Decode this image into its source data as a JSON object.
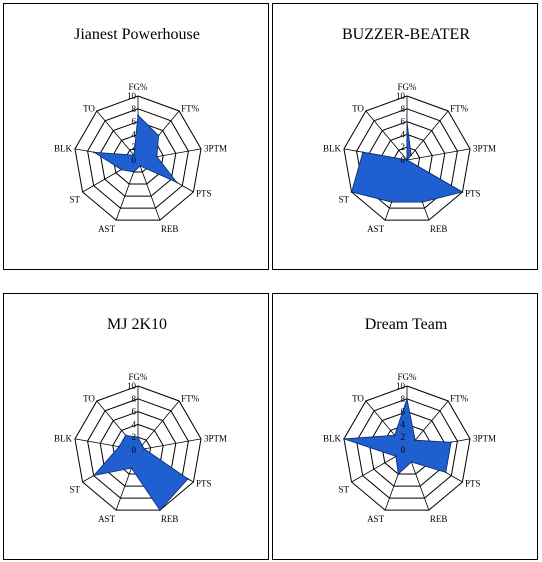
{
  "chart_data": [
    {
      "type": "radar",
      "title": "Jianest Powerhouse",
      "axes": [
        "FG%",
        "FT%",
        "3PTM",
        "PTS",
        "REB",
        "AST",
        "ST",
        "BLK",
        "TO"
      ],
      "range": [
        0,
        10
      ],
      "ticks": [
        "0",
        "2",
        "4",
        "6",
        "8",
        "10"
      ],
      "values": [
        7,
        5,
        3,
        7,
        1,
        2,
        3,
        7,
        1
      ]
    },
    {
      "type": "radar",
      "title": "BUZZER-BEATER",
      "axes": [
        "FG%",
        "FT%",
        "3PTM",
        "PTS",
        "REB",
        "AST",
        "ST",
        "BLK",
        "TO"
      ],
      "range": [
        0,
        10
      ],
      "ticks": [
        "0",
        "2",
        "4",
        "6",
        "8",
        "10"
      ],
      "values": [
        6,
        1,
        0,
        10,
        7,
        7,
        10,
        7,
        0
      ]
    },
    {
      "type": "radar",
      "title": "MJ 2K10",
      "axes": [
        "FG%",
        "FT%",
        "3PTM",
        "PTS",
        "REB",
        "AST",
        "ST",
        "BLK",
        "TO"
      ],
      "range": [
        0,
        10
      ],
      "ticks": [
        "0",
        "2",
        "4",
        "6",
        "8",
        "10"
      ],
      "values": [
        2,
        1,
        1,
        9,
        10,
        3,
        8,
        3,
        3
      ]
    },
    {
      "type": "radar",
      "title": "Dream Team",
      "axes": [
        "FG%",
        "FT%",
        "3PTM",
        "PTS",
        "REB",
        "AST",
        "ST",
        "BLK",
        "TO"
      ],
      "range": [
        0,
        10
      ],
      "ticks": [
        "0",
        "2",
        "4",
        "6",
        "8",
        "10"
      ],
      "values": [
        8,
        2,
        7,
        7,
        2,
        4,
        2,
        10,
        3
      ]
    }
  ],
  "colors": {
    "fill": "#1f5fd0",
    "stroke": "#0a2a6a",
    "grid": "#000000"
  }
}
